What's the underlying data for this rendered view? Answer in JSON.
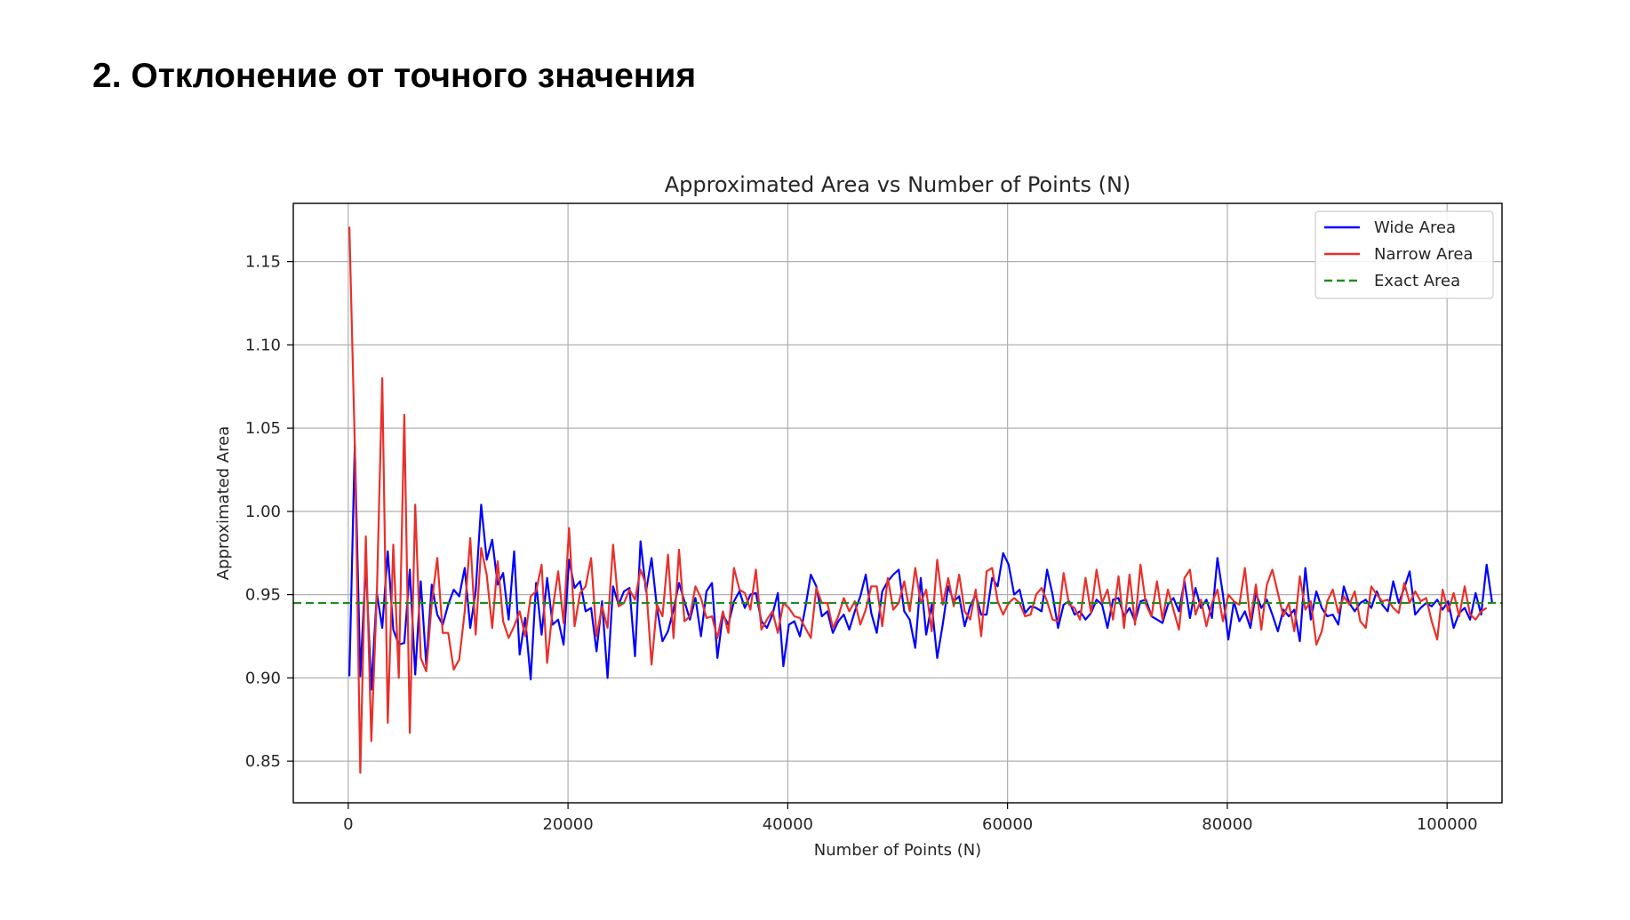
{
  "slide": {
    "title": "2. Отклонение от точного значения"
  },
  "chart_data": {
    "type": "line",
    "title": "Approximated Area vs Number of Points (N)",
    "xlabel": "Number of Points (N)",
    "ylabel": "Approximated Area",
    "xlim": [
      -5000,
      105000
    ],
    "ylim": [
      0.825,
      1.185
    ],
    "xticks": [
      0,
      20000,
      40000,
      60000,
      80000,
      100000
    ],
    "xtick_labels": [
      "0",
      "20000",
      "40000",
      "60000",
      "80000",
      "100000"
    ],
    "yticks": [
      0.85,
      0.9,
      0.95,
      1.0,
      1.05,
      1.1,
      1.15
    ],
    "ytick_labels": [
      "0.85",
      "0.90",
      "0.95",
      "1.00",
      "1.05",
      "1.10",
      "1.15"
    ],
    "grid": true,
    "legend_position": "top-right",
    "x_start": 100,
    "x_step": 500,
    "exact_value": 0.945,
    "series": [
      {
        "name": "Wide Area",
        "color": "#0000ff",
        "style": "solid",
        "values": [
          0.901,
          1.04,
          0.901,
          0.969,
          0.893,
          0.951,
          0.93,
          0.976,
          0.929,
          0.92,
          0.921,
          0.965,
          0.902,
          0.958,
          0.908,
          0.956,
          0.938,
          0.932,
          0.944,
          0.953,
          0.949,
          0.966,
          0.93,
          0.952,
          1.004,
          0.971,
          0.983,
          0.956,
          0.963,
          0.935,
          0.976,
          0.914,
          0.936,
          0.899,
          0.957,
          0.926,
          0.96,
          0.932,
          0.935,
          0.92,
          0.971,
          0.954,
          0.958,
          0.94,
          0.942,
          0.916,
          0.946,
          0.9,
          0.955,
          0.944,
          0.952,
          0.954,
          0.913,
          0.982,
          0.952,
          0.972,
          0.942,
          0.922,
          0.928,
          0.941,
          0.957,
          0.946,
          0.935,
          0.948,
          0.925,
          0.952,
          0.957,
          0.912,
          0.938,
          0.932,
          0.946,
          0.952,
          0.942,
          0.95,
          0.951,
          0.934,
          0.93,
          0.938,
          0.951,
          0.907,
          0.932,
          0.934,
          0.925,
          0.942,
          0.962,
          0.955,
          0.937,
          0.94,
          0.927,
          0.934,
          0.938,
          0.929,
          0.94,
          0.949,
          0.962,
          0.939,
          0.927,
          0.952,
          0.958,
          0.962,
          0.965,
          0.94,
          0.935,
          0.918,
          0.96,
          0.926,
          0.944,
          0.912,
          0.932,
          0.955,
          0.946,
          0.949,
          0.931,
          0.943,
          0.95,
          0.938,
          0.938,
          0.96,
          0.955,
          0.975,
          0.968,
          0.95,
          0.953,
          0.939,
          0.943,
          0.942,
          0.94,
          0.965,
          0.95,
          0.93,
          0.944,
          0.946,
          0.938,
          0.94,
          0.935,
          0.939,
          0.947,
          0.944,
          0.93,
          0.947,
          0.948,
          0.937,
          0.942,
          0.934,
          0.946,
          0.947,
          0.937,
          0.935,
          0.933,
          0.944,
          0.948,
          0.94,
          0.958,
          0.936,
          0.954,
          0.942,
          0.947,
          0.936,
          0.972,
          0.95,
          0.923,
          0.946,
          0.934,
          0.94,
          0.93,
          0.951,
          0.942,
          0.947,
          0.938,
          0.928,
          0.941,
          0.937,
          0.941,
          0.922,
          0.966,
          0.935,
          0.952,
          0.942,
          0.937,
          0.938,
          0.932,
          0.955,
          0.945,
          0.94,
          0.945,
          0.947,
          0.942,
          0.952,
          0.944,
          0.94,
          0.958,
          0.945,
          0.954,
          0.964,
          0.938,
          0.942,
          0.945,
          0.943,
          0.947,
          0.941,
          0.946,
          0.93,
          0.939,
          0.942,
          0.935,
          0.951,
          0.938,
          0.968,
          0.945
        ]
      },
      {
        "name": "Narrow Area",
        "color": "#e8302a",
        "style": "solid",
        "values": [
          1.171,
          1.04,
          0.843,
          0.985,
          0.862,
          0.95,
          1.08,
          0.873,
          0.98,
          0.9,
          1.058,
          0.867,
          1.004,
          0.912,
          0.904,
          0.945,
          0.972,
          0.927,
          0.927,
          0.905,
          0.911,
          0.94,
          0.984,
          0.926,
          0.978,
          0.962,
          0.93,
          0.97,
          0.934,
          0.924,
          0.931,
          0.94,
          0.925,
          0.949,
          0.952,
          0.968,
          0.909,
          0.941,
          0.964,
          0.933,
          0.99,
          0.931,
          0.951,
          0.955,
          0.972,
          0.925,
          0.943,
          0.93,
          0.98,
          0.943,
          0.945,
          0.953,
          0.947,
          0.965,
          0.956,
          0.908,
          0.944,
          0.937,
          0.974,
          0.924,
          0.977,
          0.934,
          0.937,
          0.955,
          0.948,
          0.936,
          0.937,
          0.924,
          0.94,
          0.927,
          0.966,
          0.953,
          0.951,
          0.941,
          0.965,
          0.929,
          0.935,
          0.94,
          0.927,
          0.945,
          0.942,
          0.937,
          0.936,
          0.93,
          0.924,
          0.954,
          0.945,
          0.945,
          0.93,
          0.937,
          0.948,
          0.94,
          0.946,
          0.932,
          0.941,
          0.955,
          0.955,
          0.931,
          0.96,
          0.941,
          0.945,
          0.958,
          0.94,
          0.966,
          0.945,
          0.953,
          0.928,
          0.971,
          0.944,
          0.96,
          0.943,
          0.962,
          0.94,
          0.935,
          0.953,
          0.925,
          0.964,
          0.966,
          0.946,
          0.938,
          0.945,
          0.948,
          0.945,
          0.937,
          0.938,
          0.95,
          0.954,
          0.946,
          0.935,
          0.934,
          0.963,
          0.944,
          0.942,
          0.935,
          0.96,
          0.939,
          0.965,
          0.945,
          0.953,
          0.935,
          0.961,
          0.93,
          0.962,
          0.932,
          0.968,
          0.944,
          0.937,
          0.958,
          0.935,
          0.953,
          0.941,
          0.929,
          0.96,
          0.965,
          0.938,
          0.947,
          0.931,
          0.945,
          0.953,
          0.934,
          0.95,
          0.946,
          0.944,
          0.966,
          0.934,
          0.956,
          0.929,
          0.956,
          0.965,
          0.951,
          0.937,
          0.945,
          0.928,
          0.961,
          0.941,
          0.946,
          0.92,
          0.928,
          0.946,
          0.953,
          0.939,
          0.949,
          0.944,
          0.952,
          0.934,
          0.93,
          0.955,
          0.95,
          0.946,
          0.947,
          0.942,
          0.939,
          0.957,
          0.945,
          0.952,
          0.946,
          0.948,
          0.934,
          0.923,
          0.953,
          0.94,
          0.951,
          0.937,
          0.955,
          0.938,
          0.935,
          0.94,
          0.942
        ]
      },
      {
        "name": "Exact Area",
        "color": "#218a21",
        "style": "dashed"
      }
    ]
  }
}
